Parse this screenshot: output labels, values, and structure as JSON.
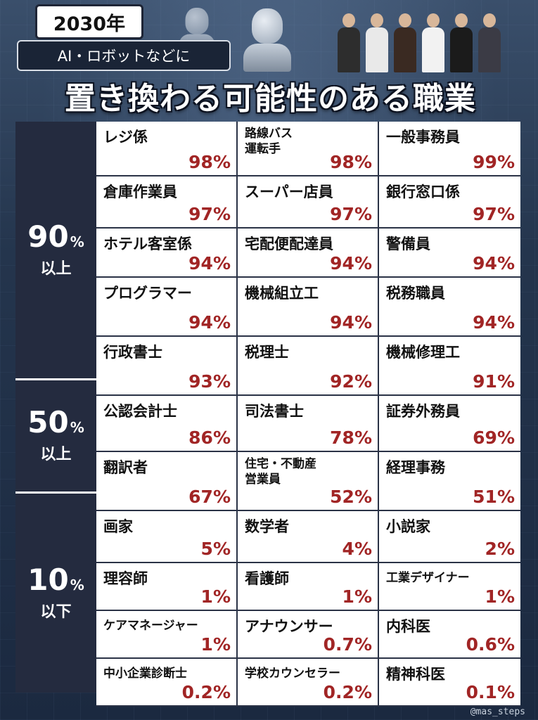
{
  "header": {
    "year": "2030年",
    "subtitle": "AI・ロボットなどに",
    "title": "置き換わる可能性のある職業"
  },
  "bands": [
    {
      "pct": "90",
      "unit": "%",
      "label": "以上"
    },
    {
      "pct": "50",
      "unit": "%",
      "label": "以上"
    },
    {
      "pct": "10",
      "unit": "%",
      "label": "以下"
    }
  ],
  "jobs": [
    {
      "name": "レジ係",
      "rate": "98%"
    },
    {
      "name": "路線バス\n運転手",
      "rate": "98%"
    },
    {
      "name": "一般事務員",
      "rate": "99%"
    },
    {
      "name": "倉庫作業員",
      "rate": "97%"
    },
    {
      "name": "スーパー店員",
      "rate": "97%"
    },
    {
      "name": "銀行窓口係",
      "rate": "97%"
    },
    {
      "name": "ホテル客室係",
      "rate": "94%"
    },
    {
      "name": "宅配便配達員",
      "rate": "94%"
    },
    {
      "name": "警備員",
      "rate": "94%"
    },
    {
      "name": "プログラマー",
      "rate": "94%"
    },
    {
      "name": "機械組立工",
      "rate": "94%"
    },
    {
      "name": "税務職員",
      "rate": "94%"
    },
    {
      "name": "行政書士",
      "rate": "93%"
    },
    {
      "name": "税理士",
      "rate": "92%"
    },
    {
      "name": "機械修理工",
      "rate": "91%"
    },
    {
      "name": "公認会計士",
      "rate": "86%"
    },
    {
      "name": "司法書士",
      "rate": "78%"
    },
    {
      "name": "証券外務員",
      "rate": "69%"
    },
    {
      "name": "翻訳者",
      "rate": "67%"
    },
    {
      "name": "住宅・不動産\n営業員",
      "rate": "52%"
    },
    {
      "name": "経理事務",
      "rate": "51%"
    },
    {
      "name": "画家",
      "rate": "5%"
    },
    {
      "name": "数学者",
      "rate": "4%"
    },
    {
      "name": "小説家",
      "rate": "2%"
    },
    {
      "name": "理容師",
      "rate": "1%"
    },
    {
      "name": "看護師",
      "rate": "1%"
    },
    {
      "name": "工業デザイナー",
      "rate": "1%"
    },
    {
      "name": "ケアマネージャー",
      "rate": "1%"
    },
    {
      "name": "アナウンサー",
      "rate": "0.7%"
    },
    {
      "name": "内科医",
      "rate": "0.6%"
    },
    {
      "name": "中小企業診断士",
      "rate": "0.2%"
    },
    {
      "name": "学校カウンセラー",
      "rate": "0.2%"
    },
    {
      "name": "精神科医",
      "rate": "0.1%"
    }
  ],
  "watermark": "@mas_steps",
  "colors": {
    "rate": "#a12525",
    "band": "#242b3f"
  }
}
